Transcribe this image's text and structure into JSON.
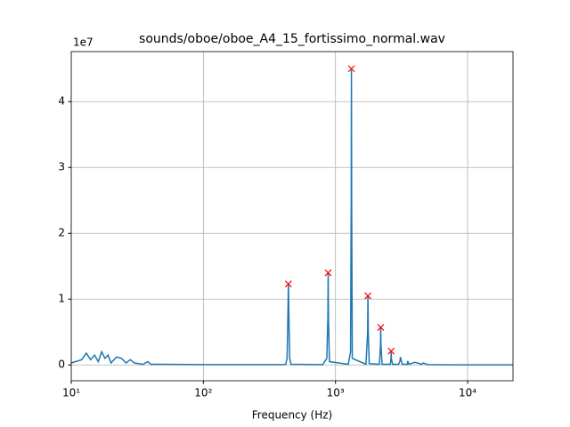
{
  "chart_data": {
    "type": "line",
    "title": "sounds/oboe/oboe_A4_15_fortissimo_normal.wav",
    "x_label": "Frequency (Hz)",
    "y_offset_label": "1e7",
    "xscale": "log",
    "grid": true,
    "xlim": [
      10,
      22050
    ],
    "ylim": [
      -0.24,
      4.76
    ],
    "xticks": [
      {
        "value": 10,
        "label": "10¹"
      },
      {
        "value": 100,
        "label": "10²"
      },
      {
        "value": 1000,
        "label": "10³"
      },
      {
        "value": 10000,
        "label": "10⁴"
      }
    ],
    "yticks": [
      0,
      1,
      2,
      3,
      4
    ],
    "x": [
      10,
      12,
      13,
      14,
      15,
      16,
      17,
      18,
      19,
      20,
      22,
      24,
      26,
      28,
      30,
      35,
      38,
      40,
      50,
      100,
      200,
      400,
      420,
      430,
      435,
      440,
      445,
      450,
      460,
      800,
      860,
      875,
      880,
      885,
      900,
      1250,
      1300,
      1315,
      1320,
      1325,
      1340,
      1700,
      1750,
      1760,
      1770,
      1800,
      2150,
      2190,
      2200,
      2210,
      2250,
      2600,
      2630,
      2640,
      2650,
      2700,
      3000,
      3080,
      3100,
      3200,
      3500,
      3520,
      3600,
      4000,
      4500,
      4600,
      5000,
      8000,
      22050
    ],
    "series": [
      {
        "color": "#1f77b4",
        "values": [
          0.03,
          0.08,
          0.18,
          0.08,
          0.15,
          0.05,
          0.2,
          0.1,
          0.15,
          0.03,
          0.12,
          0.1,
          0.03,
          0.08,
          0.03,
          0.01,
          0.05,
          0.01,
          0.01,
          0.005,
          0.005,
          0.005,
          0.01,
          0.1,
          0.6,
          1.23,
          0.6,
          0.1,
          0.01,
          0.005,
          0.1,
          0.7,
          1.4,
          0.7,
          0.05,
          0.01,
          0.2,
          2.5,
          4.5,
          2.5,
          0.1,
          0.01,
          0.5,
          1.05,
          0.5,
          0.02,
          0.01,
          0.3,
          0.57,
          0.3,
          0.01,
          0.01,
          0.1,
          0.21,
          0.1,
          0.01,
          0.01,
          0.06,
          0.12,
          0.01,
          0.01,
          0.06,
          0.01,
          0.04,
          0.01,
          0.03,
          0.005,
          0.002,
          0.001
        ]
      }
    ],
    "markers": {
      "color": "#ff0000",
      "x": [
        440,
        880,
        1320,
        1760,
        2200,
        2640
      ],
      "values": [
        1.23,
        1.4,
        4.5,
        1.05,
        0.57,
        0.21
      ]
    }
  }
}
